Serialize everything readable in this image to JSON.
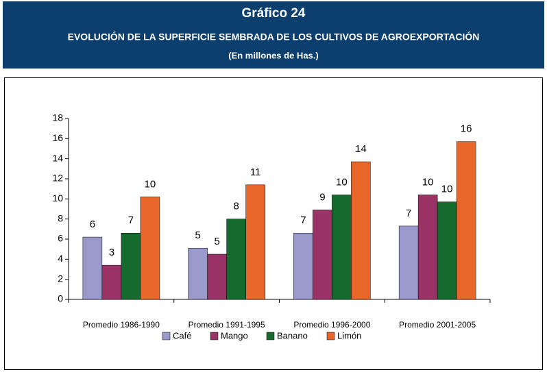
{
  "chart_data": {
    "type": "bar",
    "title": "Gráfico 24",
    "subtitle": "EVOLUCIÓN DE LA SUPERFICIE SEMBRADA DE LOS CULTIVOS DE AGROEXPORTACIÓN",
    "unit_note": "(En millones de Has.)",
    "categories": [
      "Promedio 1986-1990",
      "Promedio 1991-1995",
      "Promedio 1996-2000",
      "Promedio 2001-2005"
    ],
    "series": [
      {
        "name": "Café",
        "color": "#9999cc",
        "values": [
          6.2,
          5.1,
          6.6,
          7.3
        ],
        "value_labels": [
          "6",
          "5",
          "7",
          "7"
        ]
      },
      {
        "name": "Mango",
        "color": "#993366",
        "values": [
          3.4,
          4.5,
          8.9,
          10.4
        ],
        "value_labels": [
          "3",
          "5",
          "9",
          "10"
        ]
      },
      {
        "name": "Banano",
        "color": "#156b2e",
        "values": [
          6.6,
          8.0,
          10.4,
          9.7
        ],
        "value_labels": [
          "7",
          "8",
          "10",
          "10"
        ]
      },
      {
        "name": "Limón",
        "color": "#e8662a",
        "values": [
          10.2,
          11.4,
          13.7,
          15.7
        ],
        "value_labels": [
          "10",
          "11",
          "14",
          "16"
        ]
      }
    ],
    "ylim": [
      0,
      18
    ],
    "yticks": [
      0,
      2,
      4,
      6,
      8,
      10,
      12,
      14,
      16,
      18
    ]
  }
}
